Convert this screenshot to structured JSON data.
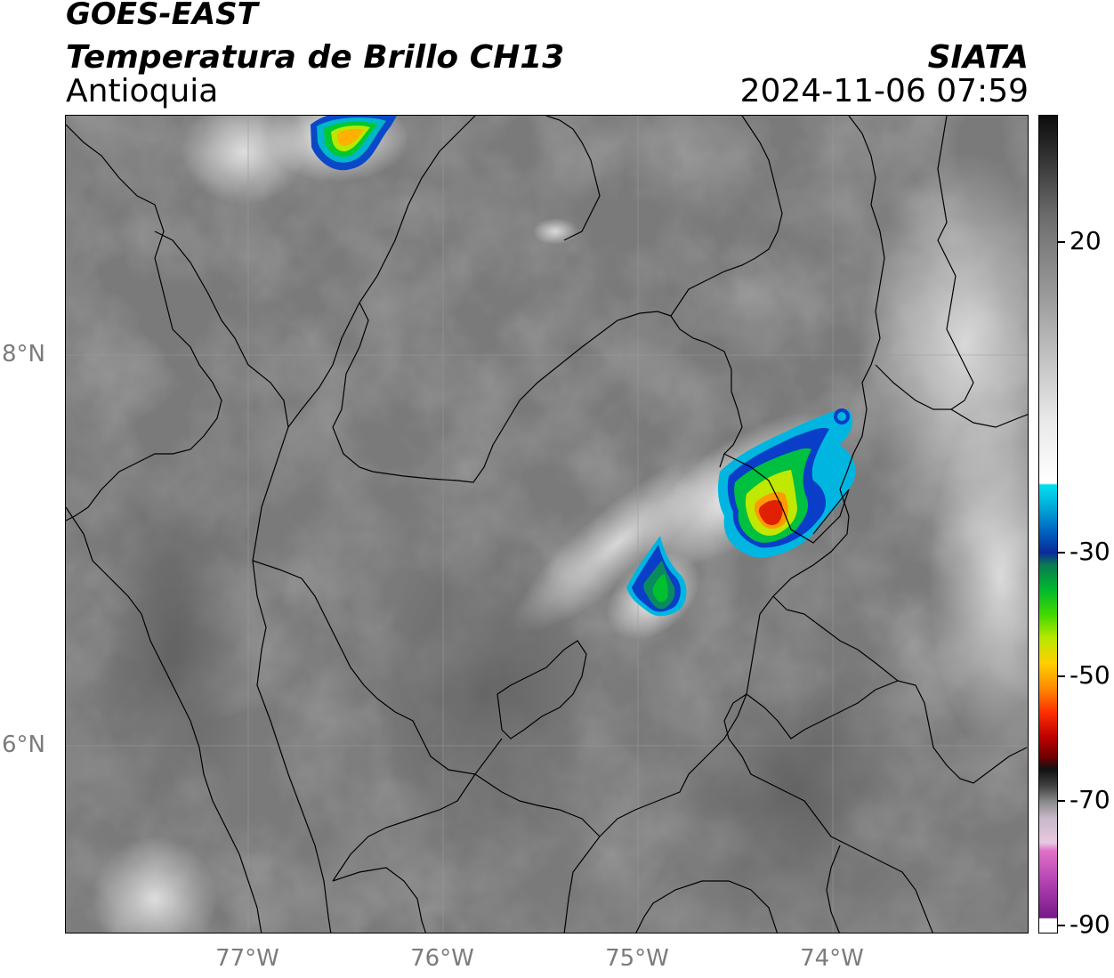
{
  "titles": {
    "satellite": "GOES-EAST",
    "product": "Temperatura de Brillo CH13",
    "region": "Antioquia",
    "organization": "SIATA",
    "datetime": "2024-11-06 07:59"
  },
  "axes": {
    "latitude_labels": [
      "8°N",
      "6°N"
    ],
    "longitude_labels": [
      "77°W",
      "76°W",
      "75°W",
      "74°W"
    ]
  },
  "colorbar": {
    "tick_labels": [
      "20",
      "-30",
      "-50",
      "-70",
      "-90"
    ],
    "range": [
      -90,
      40
    ]
  },
  "map": {
    "background_color": "#7a7a7a",
    "border_color": "#000000",
    "gridline_color": "#999999"
  }
}
